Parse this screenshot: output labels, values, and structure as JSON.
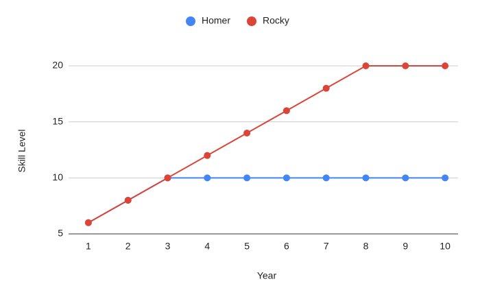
{
  "chart_data": {
    "type": "line",
    "x": [
      1,
      2,
      3,
      4,
      5,
      6,
      7,
      8,
      9,
      10
    ],
    "series": [
      {
        "name": "Homer",
        "color": "#4285f4",
        "values": [
          6,
          8,
          10,
          10,
          10,
          10,
          10,
          10,
          10,
          10
        ]
      },
      {
        "name": "Rocky",
        "color": "#db4437",
        "values": [
          6,
          8,
          10,
          12,
          14,
          16,
          18,
          20,
          20,
          20
        ]
      }
    ],
    "xlabel": "Year",
    "ylabel": "Skill Level",
    "xlim": [
      0.5,
      10.5
    ],
    "xticks": [
      1,
      2,
      3,
      4,
      5,
      6,
      7,
      8,
      9,
      10
    ],
    "ylim": [
      5,
      20
    ],
    "yticks": [
      5,
      10,
      15,
      20
    ],
    "grid": true,
    "legend": "top"
  }
}
